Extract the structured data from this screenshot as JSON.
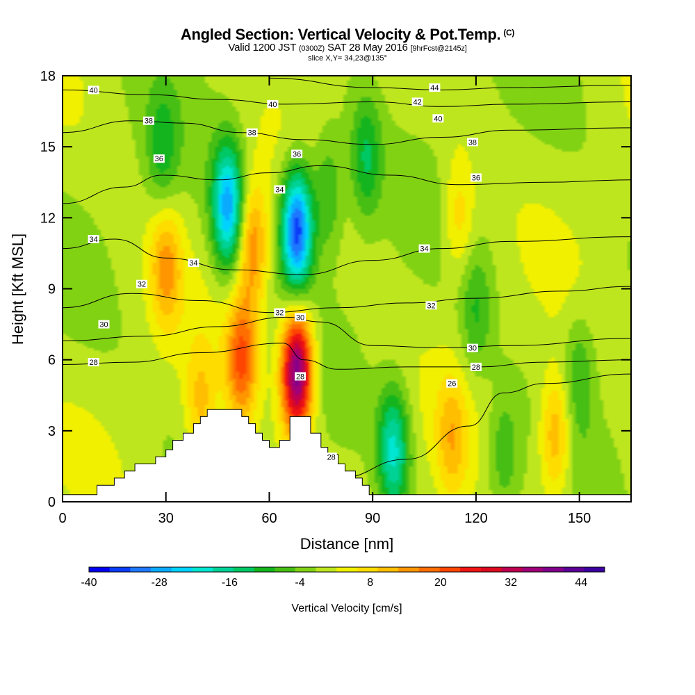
{
  "header": {
    "title": "Angled Section: Vertical Velocity & Pot.Temp.",
    "title_mark": "(C)",
    "valid_prefix": "Valid 1200 JST",
    "valid_utc": "(0300Z)",
    "valid_date": "SAT 28 May 2016",
    "forecast": "[9hrFcst@2145z]",
    "slice": "slice X,Y= 34,23@135°"
  },
  "chart_data": {
    "type": "heatmap",
    "xlabel": "Distance [nm]",
    "ylabel": "Height [Kft MSL]",
    "xlim": [
      0,
      165
    ],
    "ylim": [
      0,
      18
    ],
    "x_ticks": [
      0,
      30,
      60,
      90,
      120,
      150
    ],
    "y_ticks": [
      0,
      3,
      6,
      9,
      12,
      15,
      18
    ],
    "colorbar": {
      "label": "Vertical Velocity [cm/s]",
      "range": [
        -40,
        48
      ],
      "ticks": [
        -40,
        -28,
        -16,
        -4,
        8,
        20,
        32,
        44
      ],
      "colors": [
        "#0000f0",
        "#0a3cf8",
        "#1e78ff",
        "#0aaaff",
        "#00d2ff",
        "#00e6d2",
        "#00d296",
        "#00c864",
        "#14b41e",
        "#46be14",
        "#82d214",
        "#bee61e",
        "#f0f000",
        "#ffdc00",
        "#ffbe00",
        "#ff9600",
        "#ff6e00",
        "#ff4600",
        "#f01414",
        "#dc0a1e",
        "#be0050",
        "#a00078",
        "#82008c",
        "#5a0096",
        "#3c00a0"
      ]
    },
    "terrain": [
      [
        0,
        0.3
      ],
      [
        10,
        0.3
      ],
      [
        10,
        0.7
      ],
      [
        15,
        0.7
      ],
      [
        15,
        1.0
      ],
      [
        18,
        1.0
      ],
      [
        18,
        1.3
      ],
      [
        21,
        1.3
      ],
      [
        21,
        1.6
      ],
      [
        27,
        1.6
      ],
      [
        27,
        1.9
      ],
      [
        30,
        1.9
      ],
      [
        30,
        2.2
      ],
      [
        32,
        2.2
      ],
      [
        32,
        2.6
      ],
      [
        35,
        2.6
      ],
      [
        35,
        2.9
      ],
      [
        38,
        2.9
      ],
      [
        38,
        3.3
      ],
      [
        40,
        3.3
      ],
      [
        40,
        3.6
      ],
      [
        42,
        3.6
      ],
      [
        42,
        3.9
      ],
      [
        52,
        3.9
      ],
      [
        52,
        3.6
      ],
      [
        54,
        3.6
      ],
      [
        54,
        3.3
      ],
      [
        56,
        3.3
      ],
      [
        56,
        2.9
      ],
      [
        58,
        2.9
      ],
      [
        58,
        2.6
      ],
      [
        60,
        2.6
      ],
      [
        60,
        2.3
      ],
      [
        63,
        2.3
      ],
      [
        63,
        2.6
      ],
      [
        66,
        2.6
      ],
      [
        66,
        3.6
      ],
      [
        72,
        3.6
      ],
      [
        72,
        2.9
      ],
      [
        75,
        2.9
      ],
      [
        75,
        2.3
      ],
      [
        77,
        2.3
      ],
      [
        77,
        2.0
      ],
      [
        80,
        2.0
      ],
      [
        80,
        1.6
      ],
      [
        82,
        1.6
      ],
      [
        82,
        1.3
      ],
      [
        85,
        1.3
      ],
      [
        85,
        1.0
      ],
      [
        87,
        1.0
      ],
      [
        87,
        0.7
      ],
      [
        89,
        0.7
      ],
      [
        89,
        0.3
      ],
      [
        165,
        0.3
      ]
    ],
    "velocity_features": [
      {
        "x": 30,
        "y": 10.0,
        "w": 0.13
      },
      {
        "x": 29,
        "y": 14.8,
        "w": -0.09
      },
      {
        "x": 48,
        "y": 12.5,
        "w": -0.28
      },
      {
        "x": 55,
        "y": 10.8,
        "w": 0.16
      },
      {
        "x": 68,
        "y": 11.5,
        "w": -0.36
      },
      {
        "x": 77,
        "y": 13.0,
        "w": -0.1
      },
      {
        "x": 68,
        "y": 5.5,
        "w": 0.42
      },
      {
        "x": 52,
        "y": 6.0,
        "w": 0.2
      },
      {
        "x": 40,
        "y": 4.0,
        "w": 0.1
      },
      {
        "x": 96,
        "y": 2.2,
        "w": -0.2
      },
      {
        "x": 113,
        "y": 2.6,
        "w": 0.1
      },
      {
        "x": 128,
        "y": 2.0,
        "w": -0.08
      },
      {
        "x": 143,
        "y": 2.8,
        "w": 0.14
      },
      {
        "x": 150,
        "y": 5.5,
        "w": -0.08
      },
      {
        "x": 115,
        "y": 12.0,
        "w": 0.09
      },
      {
        "x": 88,
        "y": 14.5,
        "w": -0.12
      },
      {
        "x": 120,
        "y": 8.0,
        "w": -0.08
      }
    ],
    "isentropes": [
      {
        "value": 26,
        "points": [
          [
            80,
            1.0
          ],
          [
            100,
            1.8
          ],
          [
            118,
            3.2
          ],
          [
            128,
            4.6
          ],
          [
            140,
            5.0
          ],
          [
            165,
            5.4
          ]
        ]
      },
      {
        "value": 28,
        "points": [
          [
            0,
            5.8
          ],
          [
            20,
            5.9
          ],
          [
            40,
            6.3
          ],
          [
            64,
            6.7
          ],
          [
            70,
            6.0
          ],
          [
            80,
            5.6
          ],
          [
            100,
            5.7
          ],
          [
            120,
            5.7
          ],
          [
            140,
            5.9
          ],
          [
            165,
            6.0
          ]
        ]
      },
      {
        "value": 30,
        "points": [
          [
            0,
            6.8
          ],
          [
            25,
            7.0
          ],
          [
            45,
            7.4
          ],
          [
            65,
            7.8
          ],
          [
            75,
            7.6
          ],
          [
            90,
            6.6
          ],
          [
            110,
            6.5
          ],
          [
            130,
            6.6
          ],
          [
            165,
            6.9
          ]
        ]
      },
      {
        "value": 32,
        "points": [
          [
            0,
            8.2
          ],
          [
            20,
            8.8
          ],
          [
            40,
            8.5
          ],
          [
            60,
            8.0
          ],
          [
            80,
            8.2
          ],
          [
            100,
            8.4
          ],
          [
            120,
            8.6
          ],
          [
            145,
            8.9
          ],
          [
            165,
            9.1
          ]
        ]
      },
      {
        "value": 34,
        "points": [
          [
            0,
            10.7
          ],
          [
            15,
            11.1
          ],
          [
            30,
            10.3
          ],
          [
            50,
            9.8
          ],
          [
            70,
            9.6
          ],
          [
            90,
            10.2
          ],
          [
            110,
            10.7
          ],
          [
            130,
            11.0
          ],
          [
            165,
            11.2
          ]
        ]
      },
      {
        "value": 36,
        "points": [
          [
            0,
            12.6
          ],
          [
            18,
            13.3
          ],
          [
            29,
            13.8
          ],
          [
            45,
            13.6
          ],
          [
            60,
            13.9
          ],
          [
            75,
            14.2
          ],
          [
            95,
            13.8
          ],
          [
            115,
            13.4
          ],
          [
            140,
            13.5
          ],
          [
            165,
            13.6
          ]
        ]
      },
      {
        "value": 38,
        "points": [
          [
            0,
            15.6
          ],
          [
            20,
            16.1
          ],
          [
            35,
            16.0
          ],
          [
            52,
            15.6
          ],
          [
            70,
            15.3
          ],
          [
            90,
            15.1
          ],
          [
            110,
            15.4
          ],
          [
            130,
            15.7
          ],
          [
            165,
            15.8
          ]
        ]
      },
      {
        "value": 40,
        "points": [
          [
            0,
            17.4
          ],
          [
            25,
            17.2
          ],
          [
            45,
            17.0
          ],
          [
            65,
            16.8
          ],
          [
            90,
            16.9
          ],
          [
            110,
            16.7
          ],
          [
            130,
            16.8
          ],
          [
            165,
            16.9
          ]
        ]
      },
      {
        "value": 42,
        "points": [
          [
            60,
            17.9
          ],
          [
            90,
            17.5
          ],
          [
            110,
            17.4
          ],
          [
            130,
            17.5
          ],
          [
            165,
            17.6
          ]
        ]
      }
    ],
    "contour_labels": [
      {
        "text": "40",
        "x": 9,
        "y": 17.4
      },
      {
        "text": "40",
        "x": 61,
        "y": 16.8
      },
      {
        "text": "44",
        "x": 108,
        "y": 17.5
      },
      {
        "text": "42",
        "x": 103,
        "y": 16.9
      },
      {
        "text": "40",
        "x": 109,
        "y": 16.2
      },
      {
        "text": "38",
        "x": 25,
        "y": 16.1
      },
      {
        "text": "38",
        "x": 55,
        "y": 15.6
      },
      {
        "text": "38",
        "x": 119,
        "y": 15.2
      },
      {
        "text": "36",
        "x": 28,
        "y": 14.5
      },
      {
        "text": "36",
        "x": 68,
        "y": 14.7
      },
      {
        "text": "36",
        "x": 120,
        "y": 13.7
      },
      {
        "text": "34",
        "x": 63,
        "y": 13.2
      },
      {
        "text": "34",
        "x": 9,
        "y": 11.1
      },
      {
        "text": "34",
        "x": 38,
        "y": 10.1
      },
      {
        "text": "34",
        "x": 105,
        "y": 10.7
      },
      {
        "text": "32",
        "x": 23,
        "y": 9.2
      },
      {
        "text": "32",
        "x": 63,
        "y": 8.0
      },
      {
        "text": "32",
        "x": 107,
        "y": 8.3
      },
      {
        "text": "30",
        "x": 12,
        "y": 7.5
      },
      {
        "text": "30",
        "x": 69,
        "y": 7.8
      },
      {
        "text": "30",
        "x": 119,
        "y": 6.5
      },
      {
        "text": "28",
        "x": 9,
        "y": 5.9
      },
      {
        "text": "28",
        "x": 69,
        "y": 5.3
      },
      {
        "text": "28",
        "x": 120,
        "y": 5.7
      },
      {
        "text": "26",
        "x": 113,
        "y": 5.0
      },
      {
        "text": "28",
        "x": 78,
        "y": 1.9
      }
    ]
  }
}
